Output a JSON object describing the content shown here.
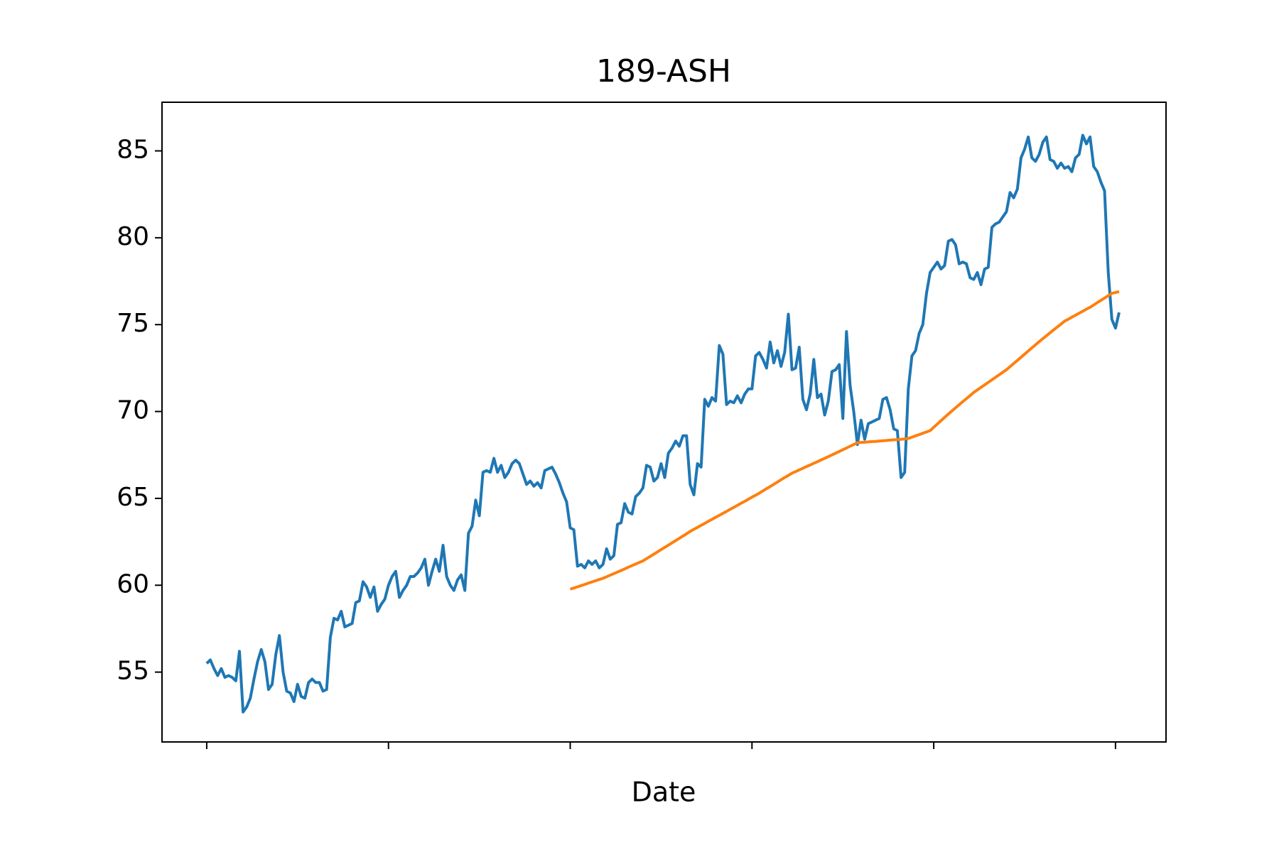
{
  "chart_data": {
    "type": "line",
    "title": "189-ASH",
    "x_label": "Date",
    "xlim": [
      -12.3,
      263.9
    ],
    "xticks": [
      0,
      50,
      100,
      150,
      200,
      250
    ],
    "ylim": [
      50.98,
      87.8
    ],
    "yticks": [
      55,
      60,
      65,
      70,
      75,
      80,
      85
    ],
    "series": [
      {
        "color": "#1f77b4",
        "values": [
          55.5,
          55.7,
          55.2,
          54.8,
          55.2,
          54.7,
          54.8,
          54.7,
          54.5,
          56.2,
          52.7,
          53.0,
          53.5,
          54.6,
          55.6,
          56.3,
          55.6,
          54.0,
          54.3,
          56.0,
          57.1,
          55.0,
          53.9,
          53.8,
          53.3,
          54.3,
          53.6,
          53.5,
          54.4,
          54.6,
          54.4,
          54.4,
          53.9,
          54.0,
          57.0,
          58.1,
          58.0,
          58.5,
          57.6,
          57.7,
          57.8,
          59.0,
          59.1,
          60.2,
          59.9,
          59.3,
          59.9,
          58.5,
          58.9,
          59.2,
          60.0,
          60.5,
          60.8,
          59.3,
          59.7,
          60.0,
          60.5,
          60.5,
          60.7,
          61.0,
          61.5,
          60.0,
          60.8,
          61.5,
          60.8,
          62.3,
          60.5,
          60.0,
          59.7,
          60.3,
          60.6,
          59.7,
          63.0,
          63.4,
          64.9,
          64.0,
          66.5,
          66.6,
          66.5,
          67.3,
          66.5,
          66.9,
          66.2,
          66.5,
          67.0,
          67.2,
          67.0,
          66.4,
          65.8,
          66.0,
          65.7,
          65.9,
          65.6,
          66.6,
          66.7,
          66.8,
          66.4,
          65.9,
          65.3,
          64.8,
          63.3,
          63.2,
          61.1,
          61.2,
          61.0,
          61.4,
          61.2,
          61.4,
          61.0,
          61.2,
          62.1,
          61.5,
          61.7,
          63.5,
          63.6,
          64.7,
          64.2,
          64.1,
          65.1,
          65.3,
          65.6,
          66.9,
          66.8,
          66.0,
          66.2,
          67.0,
          66.2,
          67.6,
          67.9,
          68.3,
          68.0,
          68.6,
          68.6,
          65.8,
          65.2,
          67.0,
          66.8,
          70.7,
          70.3,
          70.8,
          70.6,
          73.8,
          73.3,
          70.4,
          70.6,
          70.5,
          70.9,
          70.5,
          71.0,
          71.3,
          71.3,
          73.2,
          73.4,
          73.0,
          72.5,
          74.0,
          72.8,
          73.5,
          72.6,
          73.4,
          75.6,
          72.4,
          72.5,
          73.7,
          70.7,
          70.1,
          71.0,
          73.0,
          70.8,
          71.0,
          69.8,
          70.6,
          72.3,
          72.4,
          72.7,
          69.6,
          74.6,
          71.5,
          70.0,
          68.1,
          69.5,
          68.4,
          69.3,
          69.4,
          69.5,
          69.6,
          70.7,
          70.8,
          70.1,
          69.0,
          68.9,
          66.2,
          66.5,
          71.3,
          73.2,
          73.5,
          74.5,
          75.0,
          76.8,
          78.0,
          78.3,
          78.6,
          78.2,
          78.4,
          79.8,
          79.9,
          79.6,
          78.5,
          78.6,
          78.5,
          77.7,
          77.6,
          78.0,
          77.3,
          78.2,
          78.3,
          80.6,
          80.8,
          80.9,
          81.2,
          81.5,
          82.6,
          82.3,
          82.8,
          84.6,
          85.1,
          85.8,
          84.6,
          84.4,
          84.8,
          85.5,
          85.8,
          84.5,
          84.4,
          84.0,
          84.3,
          84.0,
          84.1,
          83.8,
          84.6,
          84.8,
          85.9,
          85.4,
          85.8,
          84.1,
          83.8,
          83.2,
          82.7,
          78.0,
          75.3,
          74.8,
          75.7
        ]
      },
      {
        "color": "#ff7f0e",
        "values": [
          null,
          null,
          null,
          null,
          null,
          null,
          null,
          null,
          null,
          null,
          null,
          null,
          null,
          null,
          null,
          null,
          null,
          null,
          null,
          null,
          null,
          null,
          null,
          null,
          null,
          null,
          null,
          null,
          null,
          null,
          null,
          null,
          null,
          null,
          null,
          null,
          null,
          null,
          null,
          null,
          null,
          null,
          null,
          null,
          null,
          null,
          null,
          null,
          null,
          null,
          null,
          null,
          null,
          null,
          null,
          null,
          null,
          null,
          null,
          null,
          null,
          null,
          null,
          null,
          null,
          null,
          null,
          null,
          null,
          null,
          null,
          null,
          null,
          null,
          null,
          null,
          null,
          null,
          null,
          null,
          null,
          null,
          null,
          null,
          null,
          null,
          null,
          null,
          null,
          null,
          null,
          null,
          null,
          null,
          null,
          null,
          null,
          null,
          null,
          null,
          59.77,
          59.84,
          59.91,
          59.98,
          60.05,
          60.12,
          60.19,
          60.26,
          60.33,
          60.4,
          60.49,
          60.58,
          60.67,
          60.76,
          60.85,
          60.94,
          61.04,
          61.13,
          61.22,
          61.31,
          61.4,
          61.53,
          61.66,
          61.79,
          61.92,
          62.05,
          62.18,
          62.31,
          62.44,
          62.57,
          62.7,
          62.83,
          62.96,
          63.1,
          63.22,
          63.33,
          63.45,
          63.56,
          63.68,
          63.79,
          63.91,
          64.02,
          64.14,
          64.25,
          64.37,
          64.48,
          64.6,
          64.72,
          64.83,
          64.95,
          65.07,
          65.18,
          65.3,
          65.43,
          65.56,
          65.68,
          65.81,
          65.94,
          66.07,
          66.2,
          66.32,
          66.45,
          66.54,
          66.64,
          66.73,
          66.83,
          66.92,
          67.02,
          67.11,
          67.21,
          67.3,
          67.4,
          67.5,
          67.6,
          67.7,
          67.8,
          67.9,
          68.0,
          68.1,
          68.2,
          68.22,
          68.23,
          68.25,
          68.27,
          68.28,
          68.3,
          68.32,
          68.33,
          68.35,
          68.37,
          68.38,
          68.4,
          68.42,
          68.45,
          68.52,
          68.6,
          68.67,
          68.75,
          68.82,
          68.9,
          69.09,
          69.28,
          69.47,
          69.66,
          69.85,
          70.03,
          70.21,
          70.39,
          70.57,
          70.74,
          70.92,
          71.1,
          71.24,
          71.39,
          71.53,
          71.68,
          71.82,
          71.97,
          72.11,
          72.26,
          72.4,
          72.58,
          72.76,
          72.94,
          73.12,
          73.3,
          73.48,
          73.66,
          73.84,
          74.02,
          74.19,
          74.36,
          74.53,
          74.7,
          74.86,
          75.03,
          75.2,
          75.31,
          75.43,
          75.54,
          75.66,
          75.77,
          75.89,
          76.0,
          76.13,
          76.27,
          76.4,
          76.53,
          76.67,
          76.8,
          76.85,
          76.9
        ]
      }
    ]
  }
}
